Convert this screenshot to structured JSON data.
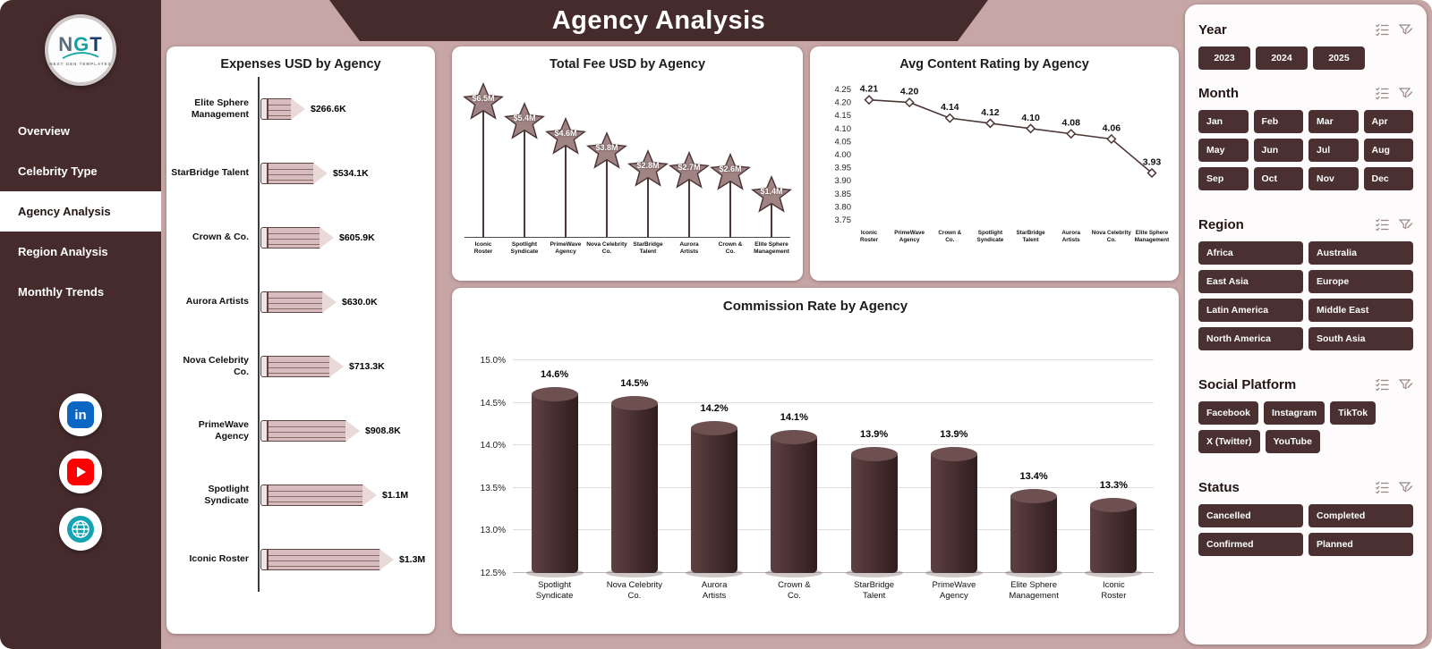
{
  "app": {
    "title": "Agency Analysis"
  },
  "colors": {
    "accent_dark": "#452b2c",
    "background": "#c7a6a6",
    "panel": "#ffffff",
    "bar_fill": "#4a3031",
    "star_fill": "#a08383",
    "pencil_fill": "#d6bcbc",
    "linkedin_blue": "#0a66c2",
    "youtube_red": "#ff0000",
    "globe_teal": "#13a3b5"
  },
  "sidebar": {
    "logo": {
      "n": "N",
      "g": "G",
      "t": "T",
      "sub": "NEXT GEN TEMPLATES"
    },
    "nav": [
      {
        "label": "Overview",
        "active": false
      },
      {
        "label": "Celebrity Type",
        "active": false
      },
      {
        "label": "Agency Analysis",
        "active": true
      },
      {
        "label": "Region Analysis",
        "active": false
      },
      {
        "label": "Monthly Trends",
        "active": false
      }
    ],
    "social_icons": [
      "linkedin-icon",
      "youtube-icon",
      "globe-icon"
    ]
  },
  "filters": {
    "year": {
      "title": "Year",
      "options": [
        "2023",
        "2024",
        "2025"
      ]
    },
    "month": {
      "title": "Month",
      "options": [
        "Jan",
        "Feb",
        "Mar",
        "Apr",
        "May",
        "Jun",
        "Jul",
        "Aug",
        "Sep",
        "Oct",
        "Nov",
        "Dec"
      ]
    },
    "region": {
      "title": "Region",
      "options": [
        "Africa",
        "Australia",
        "East Asia",
        "Europe",
        "Latin America",
        "Middle East",
        "North America",
        "South Asia"
      ]
    },
    "social_platform": {
      "title": "Social Platform",
      "options": [
        "Facebook",
        "Instagram",
        "TikTok",
        "X (Twitter)",
        "YouTube"
      ]
    },
    "status": {
      "title": "Status",
      "options": [
        "Cancelled",
        "Completed",
        "Confirmed",
        "Planned"
      ]
    }
  },
  "chart_data": [
    {
      "type": "bar",
      "orientation": "horizontal",
      "shape": "pencil",
      "title": "Expenses USD by Agency",
      "categories": [
        "Elite Sphere Management",
        "StarBridge Talent",
        "Crown & Co.",
        "Aurora Artists",
        "Nova Celebrity Co.",
        "PrimeWave Agency",
        "Spotlight Syndicate",
        "Iconic Roster"
      ],
      "values": [
        266600,
        534100,
        605900,
        630000,
        713300,
        908800,
        1100000,
        1300000
      ],
      "labels": [
        "$266.6K",
        "$534.1K",
        "$605.9K",
        "$630.0K",
        "$713.3K",
        "$908.8K",
        "$1.1M",
        "$1.3M"
      ]
    },
    {
      "type": "bar",
      "orientation": "vertical",
      "shape": "star-lollipop",
      "title": "Total Fee USD by Agency",
      "categories": [
        "Iconic Roster",
        "Spotlight Syndicate",
        "PrimeWave Agency",
        "Nova Celebrity Co.",
        "StarBridge Talent",
        "Aurora Artists",
        "Crown & Co.",
        "Elite Sphere Management"
      ],
      "values": [
        6500000,
        5400000,
        4600000,
        3800000,
        2800000,
        2700000,
        2600000,
        1400000
      ],
      "labels": [
        "$6.5M",
        "$5.4M",
        "$4.6M",
        "$3.8M",
        "$2.8M",
        "$2.7M",
        "$2.6M",
        "$1.4M"
      ]
    },
    {
      "type": "line",
      "title": "Avg Content Rating by Agency",
      "categories": [
        "Iconic Roster",
        "PrimeWave Agency",
        "Crown & Co.",
        "Spotlight Syndicate",
        "StarBridge Talent",
        "Aurora Artists",
        "Nova Celebrity Co.",
        "Elite Sphere Management"
      ],
      "values": [
        4.21,
        4.2,
        4.14,
        4.12,
        4.1,
        4.08,
        4.06,
        3.93
      ],
      "ylim": [
        3.75,
        4.25
      ],
      "yticks": [
        3.75,
        3.8,
        3.85,
        3.9,
        3.95,
        4.0,
        4.05,
        4.1,
        4.15,
        4.2,
        4.25
      ],
      "grid": false,
      "marker": "diamond"
    },
    {
      "type": "bar",
      "orientation": "vertical",
      "shape": "cylinder",
      "title": "Commission Rate by Agency",
      "categories": [
        "Spotlight Syndicate",
        "Nova Celebrity Co.",
        "Aurora Artists",
        "Crown & Co.",
        "StarBridge Talent",
        "PrimeWave Agency",
        "Elite Sphere Management",
        "Iconic Roster"
      ],
      "values": [
        14.6,
        14.5,
        14.2,
        14.1,
        13.9,
        13.9,
        13.4,
        13.3
      ],
      "labels": [
        "14.6%",
        "14.5%",
        "14.2%",
        "14.1%",
        "13.9%",
        "13.9%",
        "13.4%",
        "13.3%"
      ],
      "ylim": [
        12.5,
        15.0
      ],
      "yticks": [
        12.5,
        13.0,
        13.5,
        14.0,
        14.5,
        15.0
      ],
      "grid": true
    }
  ]
}
